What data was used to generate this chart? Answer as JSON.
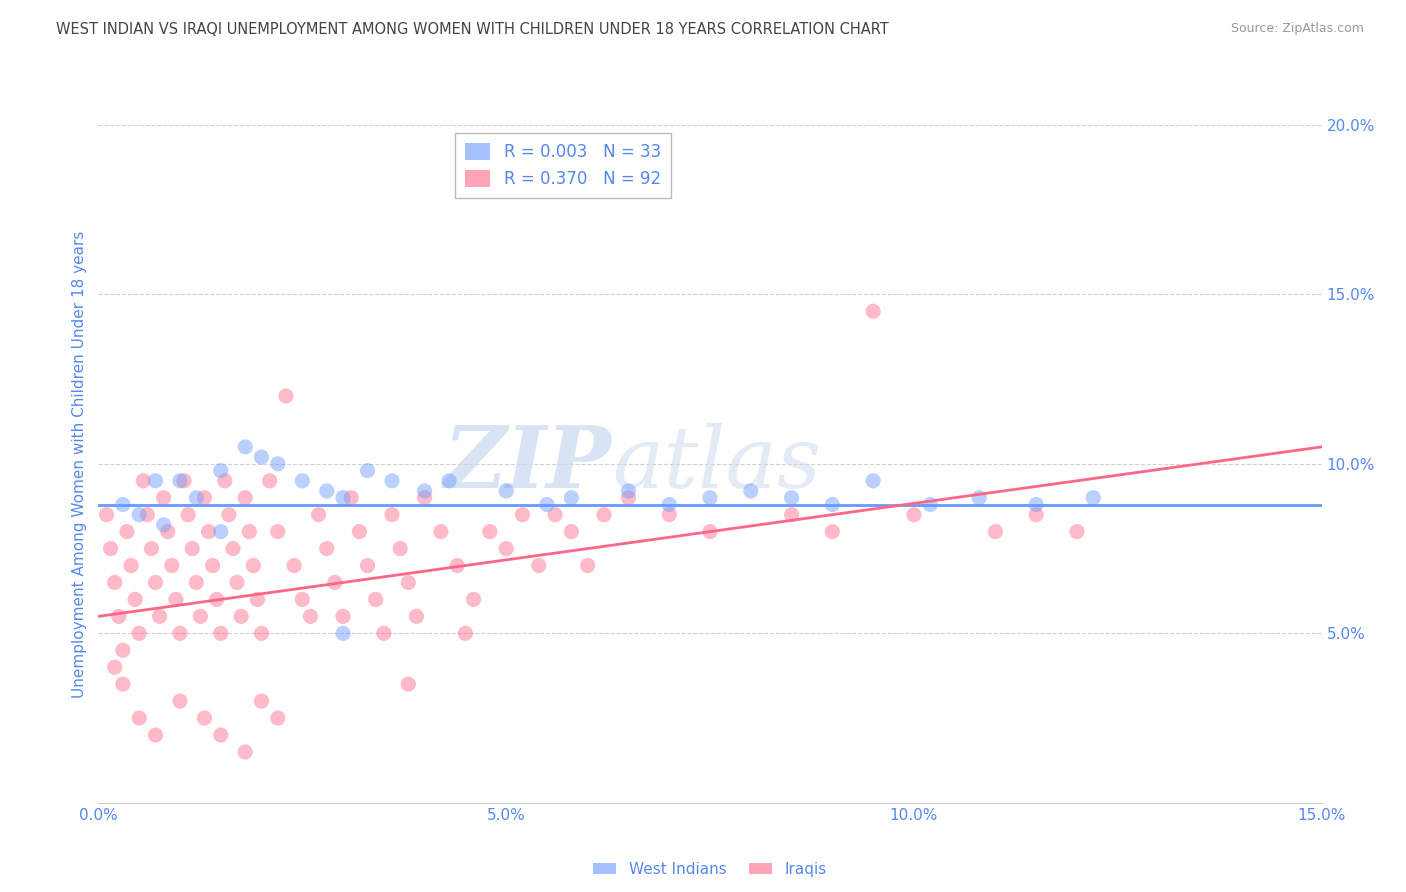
{
  "title": "WEST INDIAN VS IRAQI UNEMPLOYMENT AMONG WOMEN WITH CHILDREN UNDER 18 YEARS CORRELATION CHART",
  "source": "Source: ZipAtlas.com",
  "ylabel": "Unemployment Among Women with Children Under 18 years",
  "x_tick_labels": [
    "0.0%",
    "5.0%",
    "10.0%",
    "15.0%"
  ],
  "x_tick_vals": [
    0.0,
    5.0,
    10.0,
    15.0
  ],
  "y_tick_labels": [
    "5.0%",
    "10.0%",
    "15.0%",
    "20.0%"
  ],
  "y_tick_vals": [
    5.0,
    10.0,
    15.0,
    20.0
  ],
  "xlim": [
    0.0,
    15.0
  ],
  "ylim": [
    0.0,
    20.0
  ],
  "watermark_zip": "ZIP",
  "watermark_atlas": "atlas",
  "blue_color": "#6699ff",
  "pink_color": "#ff6688",
  "blue_line_y0": 8.8,
  "blue_line_y1": 8.8,
  "pink_line_y0": 5.5,
  "pink_line_y1": 10.5,
  "blue_dots": [
    [
      0.3,
      8.8
    ],
    [
      0.5,
      8.5
    ],
    [
      0.7,
      9.5
    ],
    [
      1.0,
      9.5
    ],
    [
      1.2,
      9.0
    ],
    [
      1.5,
      9.8
    ],
    [
      1.8,
      10.5
    ],
    [
      2.0,
      10.2
    ],
    [
      2.2,
      10.0
    ],
    [
      2.5,
      9.5
    ],
    [
      2.8,
      9.2
    ],
    [
      3.0,
      9.0
    ],
    [
      3.3,
      9.8
    ],
    [
      3.6,
      9.5
    ],
    [
      4.0,
      9.2
    ],
    [
      4.3,
      9.5
    ],
    [
      5.0,
      9.2
    ],
    [
      5.5,
      8.8
    ],
    [
      5.8,
      9.0
    ],
    [
      6.5,
      9.2
    ],
    [
      7.0,
      8.8
    ],
    [
      7.5,
      9.0
    ],
    [
      8.0,
      9.2
    ],
    [
      8.5,
      9.0
    ],
    [
      9.0,
      8.8
    ],
    [
      9.5,
      9.5
    ],
    [
      10.2,
      8.8
    ],
    [
      10.8,
      9.0
    ],
    [
      11.5,
      8.8
    ],
    [
      12.2,
      9.0
    ],
    [
      0.8,
      8.2
    ],
    [
      1.5,
      8.0
    ],
    [
      3.0,
      5.0
    ]
  ],
  "pink_dots": [
    [
      0.1,
      8.5
    ],
    [
      0.15,
      7.5
    ],
    [
      0.2,
      6.5
    ],
    [
      0.25,
      5.5
    ],
    [
      0.3,
      4.5
    ],
    [
      0.35,
      8.0
    ],
    [
      0.4,
      7.0
    ],
    [
      0.45,
      6.0
    ],
    [
      0.5,
      5.0
    ],
    [
      0.55,
      9.5
    ],
    [
      0.6,
      8.5
    ],
    [
      0.65,
      7.5
    ],
    [
      0.7,
      6.5
    ],
    [
      0.75,
      5.5
    ],
    [
      0.8,
      9.0
    ],
    [
      0.85,
      8.0
    ],
    [
      0.9,
      7.0
    ],
    [
      0.95,
      6.0
    ],
    [
      1.0,
      5.0
    ],
    [
      1.05,
      9.5
    ],
    [
      1.1,
      8.5
    ],
    [
      1.15,
      7.5
    ],
    [
      1.2,
      6.5
    ],
    [
      1.25,
      5.5
    ],
    [
      1.3,
      9.0
    ],
    [
      1.35,
      8.0
    ],
    [
      1.4,
      7.0
    ],
    [
      1.45,
      6.0
    ],
    [
      1.5,
      5.0
    ],
    [
      1.55,
      9.5
    ],
    [
      1.6,
      8.5
    ],
    [
      1.65,
      7.5
    ],
    [
      1.7,
      6.5
    ],
    [
      1.75,
      5.5
    ],
    [
      1.8,
      9.0
    ],
    [
      1.85,
      8.0
    ],
    [
      1.9,
      7.0
    ],
    [
      1.95,
      6.0
    ],
    [
      2.0,
      5.0
    ],
    [
      2.1,
      9.5
    ],
    [
      2.2,
      8.0
    ],
    [
      2.3,
      12.0
    ],
    [
      2.4,
      7.0
    ],
    [
      2.5,
      6.0
    ],
    [
      2.6,
      5.5
    ],
    [
      2.7,
      8.5
    ],
    [
      2.8,
      7.5
    ],
    [
      2.9,
      6.5
    ],
    [
      3.0,
      5.5
    ],
    [
      3.1,
      9.0
    ],
    [
      3.2,
      8.0
    ],
    [
      3.3,
      7.0
    ],
    [
      3.4,
      6.0
    ],
    [
      3.5,
      5.0
    ],
    [
      3.6,
      8.5
    ],
    [
      3.7,
      7.5
    ],
    [
      3.8,
      6.5
    ],
    [
      3.9,
      5.5
    ],
    [
      4.0,
      9.0
    ],
    [
      4.2,
      8.0
    ],
    [
      4.4,
      7.0
    ],
    [
      4.6,
      6.0
    ],
    [
      4.8,
      8.0
    ],
    [
      5.0,
      7.5
    ],
    [
      5.2,
      8.5
    ],
    [
      5.4,
      7.0
    ],
    [
      5.6,
      8.5
    ],
    [
      5.8,
      8.0
    ],
    [
      6.0,
      7.0
    ],
    [
      6.2,
      8.5
    ],
    [
      6.5,
      9.0
    ],
    [
      7.0,
      8.5
    ],
    [
      7.5,
      8.0
    ],
    [
      8.5,
      8.5
    ],
    [
      9.0,
      8.0
    ],
    [
      9.5,
      14.5
    ],
    [
      10.0,
      8.5
    ],
    [
      11.0,
      8.0
    ],
    [
      11.5,
      8.5
    ],
    [
      12.0,
      8.0
    ],
    [
      0.3,
      3.5
    ],
    [
      0.5,
      2.5
    ],
    [
      0.7,
      2.0
    ],
    [
      1.0,
      3.0
    ],
    [
      1.3,
      2.5
    ],
    [
      1.5,
      2.0
    ],
    [
      1.8,
      1.5
    ],
    [
      2.0,
      3.0
    ],
    [
      2.2,
      2.5
    ],
    [
      0.2,
      4.0
    ],
    [
      4.5,
      5.0
    ],
    [
      3.8,
      3.5
    ]
  ],
  "background_color": "#ffffff",
  "grid_color": "#cccccc",
  "axis_color": "#5588ee"
}
